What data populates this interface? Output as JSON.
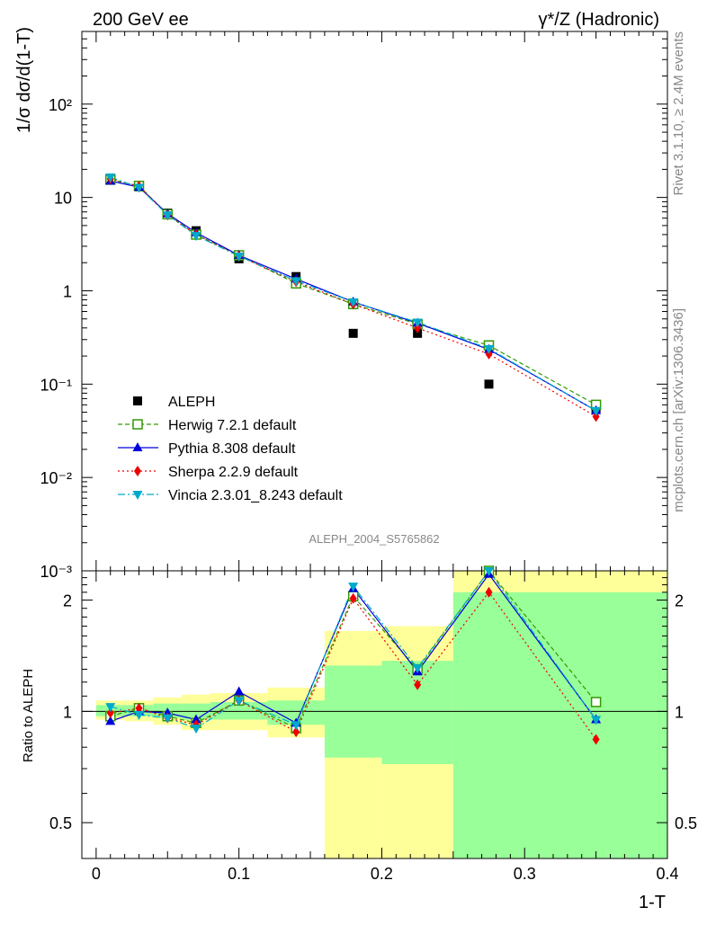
{
  "header": {
    "left": "200 GeV ee",
    "right": "γ*/Z (Hadronic)"
  },
  "side": {
    "rivet": "Rivet 3.1.10, ≥ 2.4M events",
    "site": "mcplots.cern.ch [arXiv:1306.3436]"
  },
  "chart_data": [
    {
      "type": "line",
      "ylabel": "1/σ  dσ/d(1-T)",
      "yscale": "log",
      "ylim": [
        0.001,
        600
      ],
      "xlim": [
        -0.01,
        0.4
      ],
      "ytick_labels": [
        "10⁻³",
        "10⁻²",
        "10⁻¹",
        "1",
        "10",
        "10²"
      ],
      "annotation": "ALEPH_2004_S5765862",
      "legend_position": "lower-left",
      "x": [
        0.01,
        0.03,
        0.05,
        0.07,
        0.1,
        0.14,
        0.18,
        0.225,
        0.275,
        0.35
      ],
      "series": [
        {
          "name": "ALEPH",
          "color": "#000000",
          "values": [
            16.0,
            13.0,
            6.8,
            4.4,
            2.2,
            1.42,
            0.35,
            0.35,
            0.1,
            0.055
          ]
        },
        {
          "name": "Herwig 7.2.1 default",
          "color": "#339900",
          "values": [
            15.5,
            13.3,
            6.6,
            4.0,
            2.4,
            1.2,
            0.72,
            0.44,
            0.26,
            0.06
          ]
        },
        {
          "name": "Pythia 8.308 default",
          "color": "#0000dd",
          "values": [
            15.0,
            12.9,
            6.7,
            4.2,
            2.4,
            1.34,
            0.76,
            0.45,
            0.235,
            0.052
          ]
        },
        {
          "name": "Sherpa 2.2.9 default",
          "color": "#ee0000",
          "values": [
            15.8,
            13.2,
            6.5,
            4.0,
            2.35,
            1.25,
            0.72,
            0.4,
            0.21,
            0.045
          ]
        },
        {
          "name": "Vincia 2.3.01_8.243 default",
          "color": "#00aacc",
          "values": [
            16.5,
            12.8,
            6.5,
            3.9,
            2.35,
            1.28,
            0.76,
            0.46,
            0.24,
            0.052
          ]
        }
      ]
    },
    {
      "type": "line",
      "xlabel": "1-T",
      "ylabel": "Ratio to ALEPH",
      "yscale": "log",
      "ylim": [
        0.4,
        2.4
      ],
      "xlim": [
        -0.01,
        0.4
      ],
      "xtick_labels": [
        "0",
        "0.1",
        "0.2",
        "0.3",
        "0.4"
      ],
      "ytick_labels": [
        "0.5",
        "1",
        "2"
      ],
      "x": [
        0.01,
        0.03,
        0.05,
        0.07,
        0.1,
        0.14,
        0.18,
        0.225,
        0.275,
        0.35
      ],
      "bands": [
        {
          "x": [
            0.0,
            0.02
          ],
          "green": [
            0.97,
            1.04
          ],
          "yellow": [
            0.95,
            1.07
          ]
        },
        {
          "x": [
            0.02,
            0.04
          ],
          "green": [
            0.97,
            1.04
          ],
          "yellow": [
            0.94,
            1.07
          ]
        },
        {
          "x": [
            0.04,
            0.06
          ],
          "green": [
            0.96,
            1.05
          ],
          "yellow": [
            0.92,
            1.09
          ]
        },
        {
          "x": [
            0.06,
            0.08
          ],
          "green": [
            0.95,
            1.05
          ],
          "yellow": [
            0.89,
            1.11
          ]
        },
        {
          "x": [
            0.08,
            0.12
          ],
          "green": [
            0.95,
            1.06
          ],
          "yellow": [
            0.89,
            1.12
          ]
        },
        {
          "x": [
            0.12,
            0.16
          ],
          "green": [
            0.92,
            1.07
          ],
          "yellow": [
            0.85,
            1.16
          ]
        },
        {
          "x": [
            0.16,
            0.2
          ],
          "green": [
            0.75,
            1.33
          ],
          "yellow": [
            0.38,
            1.65
          ]
        },
        {
          "x": [
            0.2,
            0.25
          ],
          "green": [
            0.72,
            1.37
          ],
          "yellow": [
            0.35,
            1.7
          ]
        },
        {
          "x": [
            0.25,
            0.4
          ],
          "green": [
            0.35,
            2.1
          ],
          "yellow": [
            0.35,
            2.4
          ]
        }
      ],
      "series": [
        {
          "name": "Herwig 7.2.1 default",
          "color": "#339900",
          "values": [
            0.97,
            1.02,
            0.97,
            0.93,
            1.07,
            0.9,
            2.05,
            1.3,
            2.4,
            1.06
          ]
        },
        {
          "name": "Pythia 8.308 default",
          "color": "#0000dd",
          "values": [
            0.94,
            1.0,
            0.99,
            0.95,
            1.13,
            0.93,
            2.15,
            1.28,
            2.35,
            0.95
          ]
        },
        {
          "name": "Sherpa 2.2.9 default",
          "color": "#ee0000",
          "values": [
            0.99,
            1.02,
            0.96,
            0.92,
            1.07,
            0.88,
            2.02,
            1.18,
            2.1,
            0.84
          ]
        },
        {
          "name": "Vincia 2.3.01_8.243 default",
          "color": "#00aacc",
          "values": [
            1.03,
            0.98,
            0.96,
            0.9,
            1.07,
            0.92,
            2.18,
            1.31,
            2.4,
            0.95
          ]
        }
      ]
    }
  ]
}
